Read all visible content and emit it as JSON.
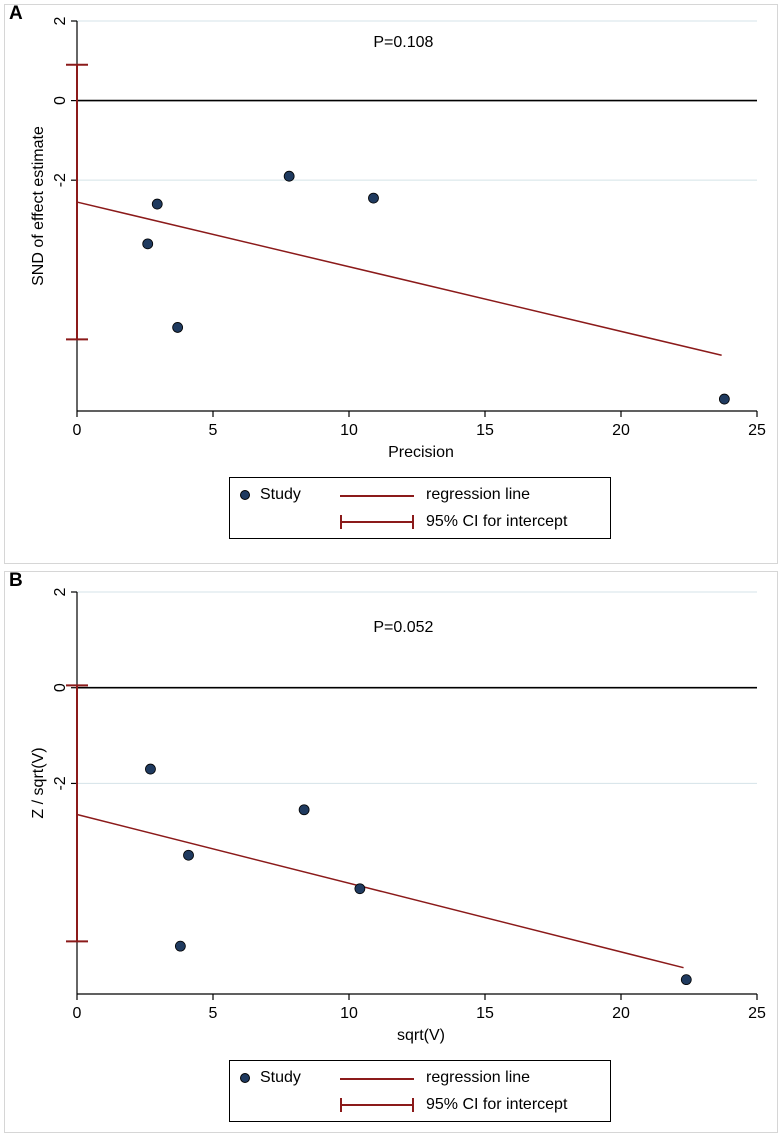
{
  "colors": {
    "marker": "#1f3a5f",
    "regression": "#8b1a1a",
    "grid": "#d4e3e8",
    "axis": "#000000"
  },
  "chart_data": [
    {
      "panel_label": "A",
      "type": "scatter",
      "annotation": "P=0.108",
      "xlabel": "Precision",
      "ylabel": "SND of effect estimate",
      "xlim": [
        0,
        25
      ],
      "ylim": [
        -7.8,
        2
      ],
      "xticks": [
        0,
        5,
        10,
        15,
        20,
        25
      ],
      "xtick_labels": [
        "0",
        "5",
        "10",
        "15",
        "20",
        "25"
      ],
      "yticks": [
        2,
        0,
        -2
      ],
      "ytick_labels": [
        "2",
        "0",
        "-2"
      ],
      "grid": "horizontal",
      "reference_line_y": 0,
      "points": [
        {
          "x": 2.6,
          "y": -3.6
        },
        {
          "x": 2.95,
          "y": -2.6
        },
        {
          "x": 3.7,
          "y": -5.7
        },
        {
          "x": 7.8,
          "y": -1.9
        },
        {
          "x": 10.9,
          "y": -2.45
        },
        {
          "x": 23.8,
          "y": -7.5
        }
      ],
      "regression_line": {
        "x": [
          0,
          23.7
        ],
        "y": [
          -2.55,
          -6.4
        ]
      },
      "ci_intercept": {
        "x": 0,
        "low": -6.0,
        "high": 0.9
      },
      "legend": {
        "study": "Study",
        "regression": "regression line",
        "ci": "95% CI for intercept"
      }
    },
    {
      "panel_label": "B",
      "type": "scatter",
      "annotation": "P=0.052",
      "xlabel": "sqrt(V)",
      "ylabel": "Z / sqrt(V)",
      "xlim": [
        0,
        25
      ],
      "ylim": [
        -6.4,
        2
      ],
      "xticks": [
        0,
        5,
        10,
        15,
        20,
        25
      ],
      "xtick_labels": [
        "0",
        "5",
        "10",
        "15",
        "20",
        "25"
      ],
      "yticks": [
        2,
        0,
        -2
      ],
      "ytick_labels": [
        "2",
        "0",
        "-2"
      ],
      "grid": "horizontal",
      "reference_line_y": 0,
      "points": [
        {
          "x": 2.7,
          "y": -1.7
        },
        {
          "x": 3.8,
          "y": -5.4
        },
        {
          "x": 4.1,
          "y": -3.5
        },
        {
          "x": 8.35,
          "y": -2.55
        },
        {
          "x": 10.4,
          "y": -4.2
        },
        {
          "x": 22.4,
          "y": -6.1
        }
      ],
      "regression_line": {
        "x": [
          0,
          22.3
        ],
        "y": [
          -2.65,
          -5.85
        ]
      },
      "ci_intercept": {
        "x": 0,
        "low": -5.3,
        "high": 0.05
      },
      "legend": {
        "study": "Study",
        "regression": "regression line",
        "ci": "95% CI for intercept"
      }
    }
  ]
}
